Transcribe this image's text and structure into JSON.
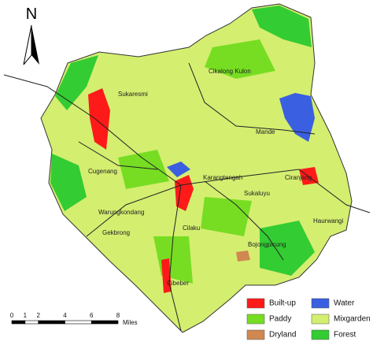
{
  "north_label": "N",
  "places": [
    "Cikalong Kulon",
    "Sukaresmi",
    "Mande",
    "Cugenang",
    "Karangtengah",
    "Sukaluyu",
    "Ciranjang",
    "Warungkondang",
    "Gekbrong",
    "Cilaku",
    "Haurwangi",
    "Bojongpicung",
    "Cibeber"
  ],
  "legend": [
    {
      "name": "Built-up",
      "color": "#ff1a1a"
    },
    {
      "name": "Paddy",
      "color": "#77dd22"
    },
    {
      "name": "Dryland",
      "color": "#d08850"
    },
    {
      "name": "Water",
      "color": "#3a5fe0"
    },
    {
      "name": "Mixgarden",
      "color": "#d4ee70"
    },
    {
      "name": "Forest",
      "color": "#33cc33"
    }
  ],
  "scale_bar": {
    "ticks": [
      0,
      1,
      2,
      4,
      6,
      8
    ],
    "unit": "Miles"
  }
}
